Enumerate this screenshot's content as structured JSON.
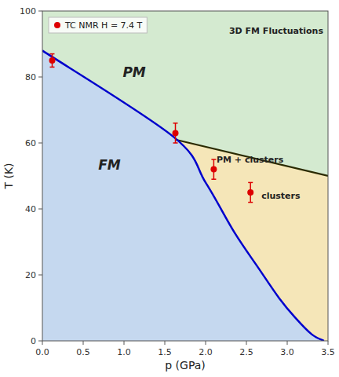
{
  "chart_data": {
    "type": "scatter",
    "title": "",
    "xlabel": "p (GPa)",
    "ylabel": "T (K)",
    "xlim": [
      0,
      3.5
    ],
    "ylim": [
      0,
      100
    ],
    "xticks": [
      {
        "value": 0,
        "label": "0.0"
      },
      0.5,
      {
        "value": 1,
        "label": "1.0"
      },
      1.5,
      {
        "value": 2,
        "label": "2.0"
      },
      2.5,
      {
        "value": 3,
        "label": "3.0"
      },
      3.5
    ],
    "yticks": [
      0,
      20,
      40,
      60,
      80,
      100
    ],
    "grid": false,
    "legend": "upper left",
    "series": [
      {
        "name": "TC NMR H = 7.4 T",
        "type": "scatter",
        "color": "#dd0000",
        "marker": "circle",
        "x": [
          0.12,
          1.63,
          2.1,
          2.55
        ],
        "values": [
          85,
          63,
          52,
          45
        ],
        "errors": [
          2,
          3,
          3,
          3
        ]
      },
      {
        "type": "line",
        "color": "#0000cc",
        "x": [
          0.0,
          1.6,
          2.0,
          2.35,
          2.65,
          2.9,
          3.1,
          3.3,
          3.45
        ],
        "values": [
          88,
          62,
          48,
          33,
          22,
          13,
          7,
          2,
          0
        ]
      },
      {
        "type": "line",
        "color": "#2a2a00",
        "x": [
          1.63,
          3.5
        ],
        "values": [
          61,
          50
        ]
      }
    ],
    "annotations": [
      {
        "text": "FM",
        "x": 0.55,
        "y": 52,
        "region_color": "#c5d8ef"
      },
      {
        "text": "PM",
        "x": 0.85,
        "y": 80,
        "region_color": "#d4ead0"
      },
      {
        "text": "PM + clusters",
        "x": 2.0,
        "y": 54,
        "region_color": "#f5e6b8"
      },
      {
        "text": "clusters",
        "x": 2.55,
        "y": 43
      },
      {
        "text": "3D FM Fluctuations",
        "x": 2.75,
        "y": 93
      }
    ]
  }
}
